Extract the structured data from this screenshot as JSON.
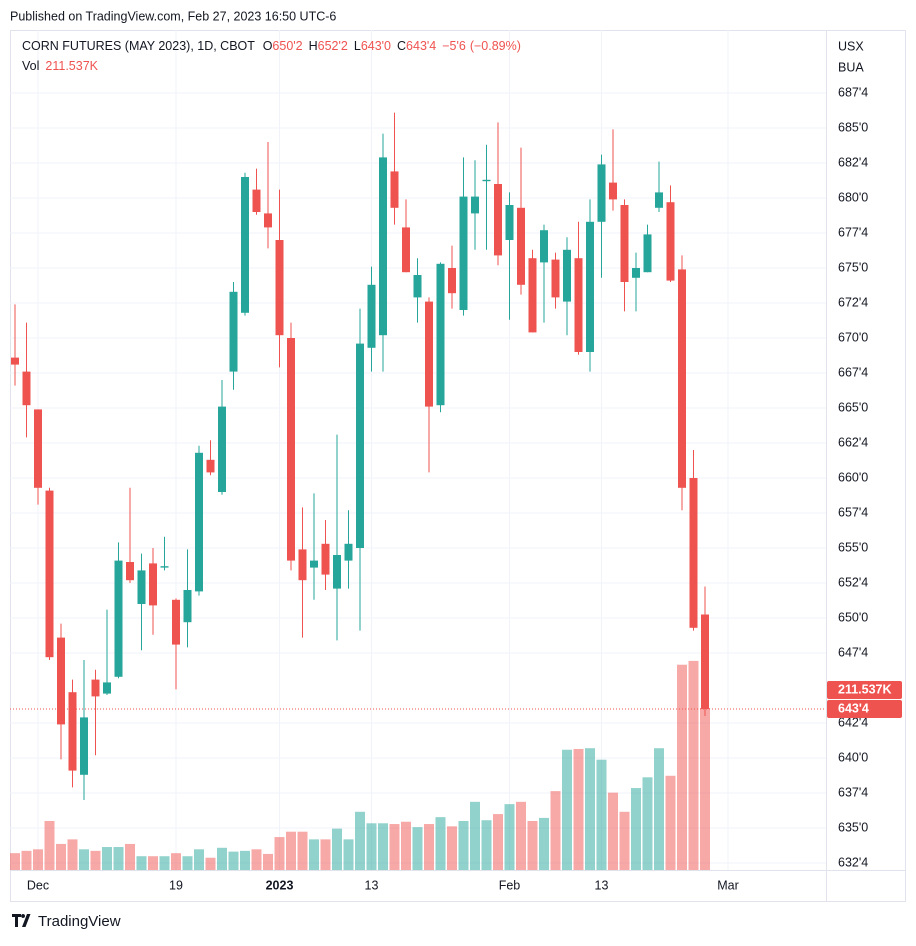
{
  "chart_data": {
    "type": "candlestick",
    "published": "Published on TradingView.com, Feb 27, 2023 16:50 UTC-6",
    "symbol": "CORN FUTURES (MAY 2023), 1D, CBOT",
    "ohlc": [
      {
        "key": "O",
        "value": 650.25,
        "label": "650'2"
      },
      {
        "key": "H",
        "value": 652.25,
        "label": "652'2"
      },
      {
        "key": "L",
        "value": 643,
        "label": "643'0"
      },
      {
        "key": "C",
        "value": 643.5,
        "label": "643'4"
      }
    ],
    "change": {
      "value": -5.75,
      "label": "−5'6"
    },
    "change_pct": {
      "value": -0.89,
      "label": "(−0.89%)"
    },
    "volume_name": "Vol",
    "last_volume": {
      "value": 211.537,
      "label": "211.537K"
    },
    "last_price": {
      "value": 643.5,
      "label": "643'4"
    },
    "currency": "USX",
    "unit": "BUA",
    "brand": "TradingView",
    "up_color": "#26a69a",
    "down_color": "#ef5350",
    "grid": true,
    "categories": [
      null,
      null,
      "Dec",
      null,
      null,
      null,
      null,
      null,
      null,
      null,
      null,
      null,
      null,
      null,
      "19",
      null,
      null,
      null,
      null,
      null,
      null,
      null,
      null,
      "2023",
      null,
      null,
      null,
      null,
      null,
      null,
      null,
      "13",
      null,
      null,
      null,
      null,
      null,
      null,
      null,
      null,
      null,
      null,
      null,
      "Feb",
      null,
      null,
      null,
      null,
      null,
      null,
      null,
      "13",
      null,
      null,
      null,
      null,
      null,
      null,
      null,
      null,
      null,
      null,
      "Mar"
    ],
    "open": [
      668.6,
      667.6,
      664.9,
      659.1,
      648.6,
      644.7,
      638.8,
      645.6,
      644.6,
      645.8,
      654,
      651,
      653.9,
      653.6,
      651.3,
      649.7,
      651.9,
      661.3,
      659,
      667.6,
      671.8,
      680.6,
      678.9,
      677,
      670,
      654.9,
      653.6,
      655.3,
      652.1,
      654.1,
      655,
      669.3,
      670.2,
      681.9,
      677.9,
      672.9,
      672.6,
      665.2,
      675,
      672,
      678.9,
      681.2,
      681,
      677,
      679.3,
      675.7,
      675.4,
      675.6,
      672.6,
      675.7,
      669,
      678.3,
      681.1,
      679.5,
      674.3,
      674.7,
      679.3,
      679.7,
      674.9,
      660,
      650.25,
      null,
      null
    ],
    "high": [
      672.4,
      671.1,
      664.9,
      659.3,
      649.6,
      645.6,
      647,
      646.3,
      650.6,
      655.4,
      659.3,
      654.6,
      655,
      655.8,
      651.4,
      654.9,
      662.3,
      662.7,
      667,
      674,
      681.8,
      682.1,
      684,
      680.6,
      671.1,
      657.9,
      658.9,
      657,
      663.1,
      657.7,
      672.1,
      675.1,
      684.6,
      686.1,
      679.9,
      675.7,
      672.9,
      675.4,
      676.6,
      682.9,
      682.7,
      683.8,
      685.4,
      680.4,
      683.6,
      676.3,
      678.1,
      676.1,
      677.2,
      678.3,
      679.9,
      683.1,
      684.9,
      679.9,
      676.1,
      678.1,
      682.6,
      680.9,
      675.9,
      662,
      652.25,
      null,
      null
    ],
    "low": [
      666.6,
      662.9,
      658.1,
      647,
      639.9,
      637.9,
      637,
      640.2,
      644.5,
      645.7,
      652.5,
      647.7,
      648.8,
      653.4,
      644.9,
      647.9,
      651.6,
      660.2,
      658.8,
      666.3,
      671.6,
      678.8,
      676.4,
      667.9,
      653.4,
      648.6,
      651.3,
      652,
      648.4,
      652.1,
      649.1,
      667.6,
      667.6,
      678.1,
      674.7,
      671.1,
      660.4,
      664.7,
      672.1,
      671.6,
      676.3,
      676.3,
      675.2,
      671.3,
      673.1,
      670.4,
      671.1,
      672.1,
      670.2,
      668.8,
      667.6,
      674.3,
      679.1,
      671.9,
      671.9,
      674.7,
      679,
      674,
      657.7,
      649.1,
      643,
      null,
      null
    ],
    "close": [
      668.1,
      665.2,
      659.3,
      647.2,
      642.4,
      639.1,
      642.9,
      644.4,
      645.4,
      654.1,
      652.7,
      653.4,
      650.9,
      653.7,
      648.1,
      652,
      661.8,
      660.4,
      665.1,
      673.3,
      681.5,
      679,
      677.9,
      670.2,
      654.1,
      652.7,
      654.1,
      653.1,
      654.5,
      655.3,
      669.6,
      673.8,
      682.9,
      679.3,
      674.7,
      674.5,
      665.1,
      675.3,
      673.2,
      680.1,
      680.1,
      681.3,
      675.9,
      679.5,
      673.8,
      670.4,
      677.7,
      672.9,
      676.3,
      669,
      678.3,
      682.4,
      679.9,
      674,
      675,
      677.4,
      680.4,
      674.1,
      659.3,
      649.3,
      643.5,
      null,
      null
    ],
    "volume": [
      22,
      25,
      27,
      64,
      34,
      40,
      27,
      25,
      30,
      30,
      34,
      18,
      18,
      18,
      22,
      18,
      27,
      16,
      29,
      24,
      25,
      27,
      21,
      43,
      50,
      50,
      40,
      40,
      54,
      40,
      76,
      61,
      61,
      60,
      63,
      56,
      60,
      69,
      57,
      64,
      89,
      65,
      73,
      86,
      89,
      64,
      68,
      103,
      157,
      158,
      159,
      144,
      101,
      76,
      107,
      121,
      159,
      123,
      268,
      273,
      211.537,
      null,
      null
    ],
    "ylim": [
      632,
      692
    ],
    "yticks": [
      {
        "value": 687.5,
        "label": "687'4"
      },
      {
        "value": 685,
        "label": "685'0"
      },
      {
        "value": 682.5,
        "label": "682'4"
      },
      {
        "value": 680,
        "label": "680'0"
      },
      {
        "value": 677.5,
        "label": "677'4"
      },
      {
        "value": 675,
        "label": "675'0"
      },
      {
        "value": 672.5,
        "label": "672'4"
      },
      {
        "value": 670,
        "label": "670'0"
      },
      {
        "value": 667.5,
        "label": "667'4"
      },
      {
        "value": 665,
        "label": "665'0"
      },
      {
        "value": 662.5,
        "label": "662'4"
      },
      {
        "value": 660,
        "label": "660'0"
      },
      {
        "value": 657.5,
        "label": "657'4"
      },
      {
        "value": 655,
        "label": "655'0"
      },
      {
        "value": 652.5,
        "label": "652'4"
      },
      {
        "value": 650,
        "label": "650'0"
      },
      {
        "value": 647.5,
        "label": "647'4"
      },
      {
        "value": 642.5,
        "label": "642'4"
      },
      {
        "value": 640,
        "label": "640'0"
      },
      {
        "value": 637.5,
        "label": "637'4"
      },
      {
        "value": 635,
        "label": "635'0"
      },
      {
        "value": 632.5,
        "label": "632'4"
      }
    ]
  }
}
